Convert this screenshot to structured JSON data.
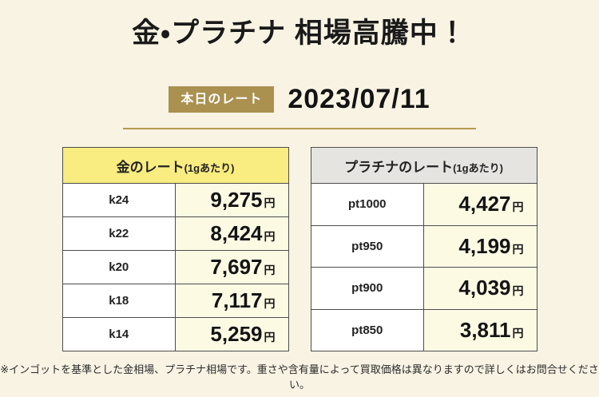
{
  "page": {
    "title": "金・プラチナ 相場高騰中！",
    "badge_label": "本日のレート",
    "date_value": "2023/07/11",
    "footnote": "※インゴットを基準とした金相場、プラチナ相場です。重さや含有量によって買取価格は異なりますので詳しくはお問合せください。"
  },
  "colors": {
    "page_background": "#f9f3e4",
    "badge_gold": "#ab9150",
    "divider_gold": "#b39b4f",
    "gold_header_bg": "#f9ec80",
    "platinum_header_bg": "#e5e4e1",
    "value_cell_bg": "#fdfae4",
    "label_cell_bg": "#ffffff",
    "table_border": "#4d4d4d"
  },
  "gold_table": {
    "title": "金のレート",
    "title_suffix": "(1gあたり)",
    "unit": "円",
    "rows": [
      {
        "label": "k24",
        "value": "9,275"
      },
      {
        "label": "k22",
        "value": "8,424"
      },
      {
        "label": "k20",
        "value": "7,697"
      },
      {
        "label": "k18",
        "value": "7,117"
      },
      {
        "label": "k14",
        "value": "5,259"
      }
    ]
  },
  "platinum_table": {
    "title": "プラチナのレート",
    "title_suffix": "(1gあたり)",
    "unit": "円",
    "rows": [
      {
        "label": "pt1000",
        "value": "4,427"
      },
      {
        "label": "pt950",
        "value": "4,199"
      },
      {
        "label": "pt900",
        "value": "4,039"
      },
      {
        "label": "pt850",
        "value": "3,811"
      }
    ]
  }
}
